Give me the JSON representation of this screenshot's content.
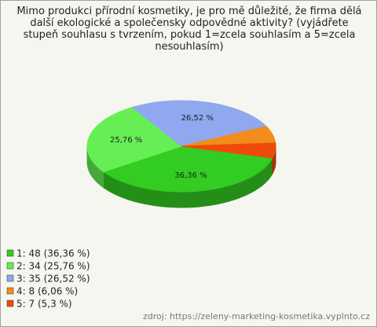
{
  "chart_data": {
    "type": "pie",
    "title": "Mimo produkci přírodní kosmetiky, je pro mě důležité, že firma dělá další ekologické a společensky odpovědné aktivity? (vyjádřete stupeň souhlasu s tvrzením, pokud 1=zcela souhlasím a 5=zcela nesouhlasím)",
    "categories": [
      "1: 48 (36,36 %)",
      "2: 34 (25,76 %)",
      "3: 35 (26,52 %)",
      "4: 8 (6,06 %)",
      "5: 7 (5,3 %)"
    ],
    "values": [
      36.36,
      25.76,
      26.52,
      6.06,
      5.3
    ],
    "value_labels": [
      "36,36 %",
      "25,76 %",
      "26,52 %",
      "6,06 %",
      "5,3 %"
    ],
    "colors": [
      "#33cc22",
      "#66ee55",
      "#8fa8f0",
      "#f28c1c",
      "#f04a0a"
    ],
    "source": "zdroj: https://zeleny-marketing-kosmetika.vyplnto.cz"
  }
}
